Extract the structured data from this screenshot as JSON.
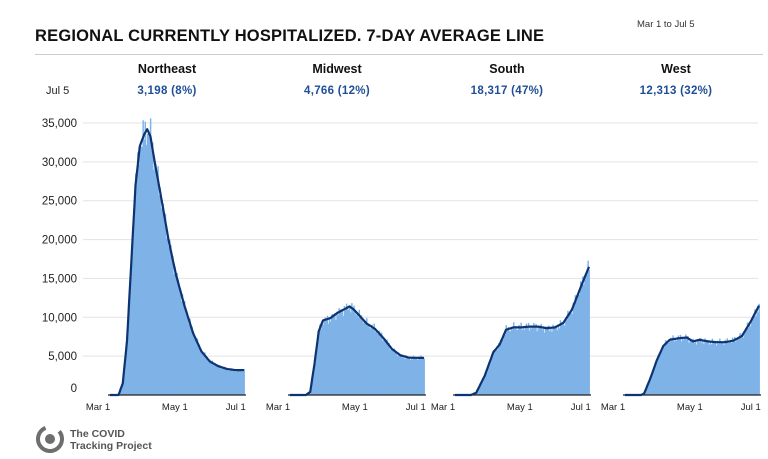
{
  "title": "REGIONAL CURRENTLY HOSPITALIZED. 7-DAY AVERAGE LINE",
  "date_range": "Mar 1 to Jul 5",
  "stat_date_label": "Jul 5",
  "regions": [
    {
      "name": "Northeast",
      "stat": "3,198 (8%)"
    },
    {
      "name": "Midwest",
      "stat": "4,766 (12%)"
    },
    {
      "name": "South",
      "stat": "18,317 (47%)"
    },
    {
      "name": "West",
      "stat": "12,313 (32%)"
    }
  ],
  "source": {
    "line1": "The COVID",
    "line2": "Tracking Project"
  },
  "colors": {
    "bars": "#7fb3e8",
    "line": "#0d3370",
    "grid": "#e3e3e3",
    "text": "#111111",
    "stat": "#1f4e96"
  },
  "chart_data": {
    "type": "bar",
    "title": "REGIONAL CURRENTLY HOSPITALIZED. 7-DAY AVERAGE LINE",
    "ylabel": "",
    "ylim": [
      0,
      35000
    ],
    "yticks": [
      0,
      5000,
      10000,
      15000,
      20000,
      25000,
      30000,
      35000
    ],
    "ytick_labels": [
      "0",
      "5,000",
      "10,000",
      "15,000",
      "20,000",
      "25,000",
      "30,000",
      "35,000"
    ],
    "xtick_labels": [
      "Mar 1",
      "May 1",
      "Jul 1"
    ],
    "xtick_days": [
      0,
      61,
      122
    ],
    "x_unit": "days since Mar 1",
    "x_max": 126,
    "panels": [
      {
        "region": "Northeast",
        "series_anchors_7day_avg": [
          [
            0,
            0
          ],
          [
            8,
            0
          ],
          [
            12,
            1500
          ],
          [
            16,
            7000
          ],
          [
            20,
            17000
          ],
          [
            24,
            27000
          ],
          [
            28,
            32000
          ],
          [
            32,
            33500
          ],
          [
            35,
            34200
          ],
          [
            38,
            33300
          ],
          [
            42,
            30000
          ],
          [
            48,
            25500
          ],
          [
            55,
            20000
          ],
          [
            62,
            15500
          ],
          [
            70,
            11500
          ],
          [
            78,
            8000
          ],
          [
            86,
            5600
          ],
          [
            94,
            4300
          ],
          [
            102,
            3700
          ],
          [
            110,
            3350
          ],
          [
            118,
            3200
          ],
          [
            126,
            3198
          ]
        ]
      },
      {
        "region": "Midwest",
        "series_anchors_7day_avg": [
          [
            0,
            0
          ],
          [
            15,
            0
          ],
          [
            19,
            400
          ],
          [
            23,
            4000
          ],
          [
            27,
            8200
          ],
          [
            31,
            9600
          ],
          [
            38,
            9900
          ],
          [
            45,
            10600
          ],
          [
            52,
            11100
          ],
          [
            56,
            11400
          ],
          [
            60,
            11000
          ],
          [
            66,
            10100
          ],
          [
            72,
            9200
          ],
          [
            80,
            8500
          ],
          [
            88,
            7300
          ],
          [
            96,
            5900
          ],
          [
            104,
            5100
          ],
          [
            112,
            4800
          ],
          [
            126,
            4766
          ]
        ]
      },
      {
        "region": "South",
        "series_anchors_7day_avg": [
          [
            0,
            0
          ],
          [
            15,
            0
          ],
          [
            20,
            300
          ],
          [
            28,
            2500
          ],
          [
            36,
            5500
          ],
          [
            42,
            6500
          ],
          [
            48,
            8400
          ],
          [
            55,
            8700
          ],
          [
            62,
            8700
          ],
          [
            70,
            8800
          ],
          [
            78,
            8800
          ],
          [
            86,
            8600
          ],
          [
            94,
            8700
          ],
          [
            102,
            9300
          ],
          [
            110,
            11000
          ],
          [
            118,
            13800
          ],
          [
            126,
            16500
          ]
        ]
      },
      {
        "region": "West",
        "series_anchors_7day_avg": [
          [
            0,
            0
          ],
          [
            15,
            0
          ],
          [
            18,
            200
          ],
          [
            24,
            2200
          ],
          [
            30,
            4500
          ],
          [
            36,
            6300
          ],
          [
            42,
            7100
          ],
          [
            50,
            7300
          ],
          [
            58,
            7400
          ],
          [
            64,
            6900
          ],
          [
            70,
            7100
          ],
          [
            78,
            6900
          ],
          [
            86,
            6800
          ],
          [
            94,
            6800
          ],
          [
            102,
            7000
          ],
          [
            110,
            7600
          ],
          [
            118,
            9400
          ],
          [
            126,
            11500
          ]
        ]
      }
    ]
  }
}
